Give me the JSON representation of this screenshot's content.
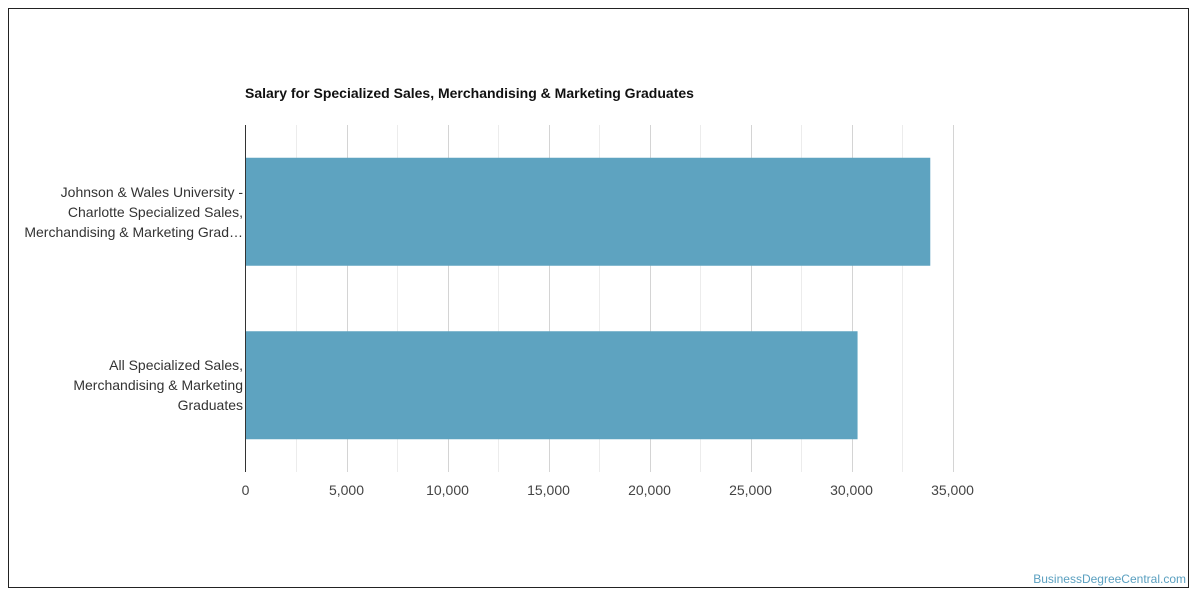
{
  "chart_data": {
    "type": "bar",
    "orientation": "horizontal",
    "title": "Salary for Specialized Sales, Merchandising & Marketing Graduates",
    "categories": [
      "Johnson & Wales University - Charlotte Specialized Sales, Merchandising & Marketing Grad…",
      "All Specialized Sales, Merchandising & Marketing Graduates"
    ],
    "category_lines": [
      [
        "Johnson & Wales University -",
        "Charlotte Specialized Sales,",
        "Merchandising & Marketing Grad…"
      ],
      [
        "All Specialized Sales,",
        "Merchandising & Marketing",
        "Graduates"
      ]
    ],
    "values": [
      33900,
      30300
    ],
    "xlim": [
      0,
      35000
    ],
    "xticks": [
      "0",
      "5,000",
      "10,000",
      "15,000",
      "20,000",
      "25,000",
      "30,000",
      "35,000"
    ],
    "xlabel": "",
    "ylabel": "",
    "grid": true,
    "bar_color": "#5ea3c0"
  },
  "credit": "BusinessDegreeCentral.com"
}
